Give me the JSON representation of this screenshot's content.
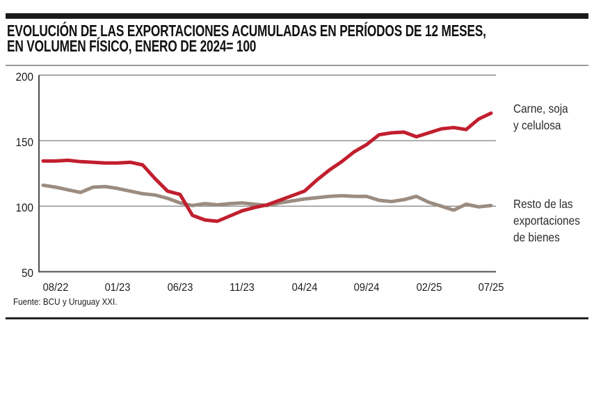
{
  "header": {
    "title_lines": [
      "EVOLUCIÓN DE LAS EXPORTACIONES ACUMULADAS EN PERÍODOS DE 12 MESES,",
      "EN VOLUMEN FÍSICO, ENERO DE 2024= 100"
    ]
  },
  "footer": {
    "source": "Fuente: BCU y Uruguay XXI."
  },
  "colors": {
    "accent_red": "#c11f2e",
    "taupe": "#9c8c80",
    "grid": "#8a8a8a",
    "axis": "#4d4d4d",
    "top_bar": "#1a1a1a",
    "text": "#1c1c1c"
  },
  "chart_data": {
    "type": "line",
    "title": "Evolución de las exportaciones acumuladas en períodos de 12 meses, en volumen físico, enero de 2024 = 100",
    "x": [
      "07/22",
      "08/22",
      "09/22",
      "10/22",
      "11/22",
      "12/22",
      "01/23",
      "02/23",
      "03/23",
      "04/23",
      "05/23",
      "06/23",
      "07/23",
      "08/23",
      "09/23",
      "10/23",
      "11/23",
      "12/23",
      "01/24",
      "02/24",
      "03/24",
      "04/24",
      "05/24",
      "06/24",
      "07/24",
      "08/24",
      "09/24",
      "10/24",
      "11/24",
      "12/24",
      "01/25",
      "02/25",
      "03/25",
      "04/25",
      "05/25",
      "06/25",
      "07/25"
    ],
    "x_tick_labels": [
      "08/22",
      "01/23",
      "06/23",
      "11/23",
      "04/24",
      "09/24",
      "02/25",
      "07/25"
    ],
    "y_ticks": [
      200,
      150,
      100,
      50
    ],
    "ylim": [
      50,
      200
    ],
    "grid": "horizontal",
    "legend_position": "right-outside",
    "series": [
      {
        "name": "Carne, soja y celulosa",
        "label_lines": [
          "Carne, soja",
          "y celulosa"
        ],
        "color": "#c11f2e",
        "values": [
          134.5,
          134.5,
          135,
          134,
          133.5,
          133,
          133,
          133.5,
          131.5,
          121,
          111.5,
          109,
          93,
          89.5,
          88.5,
          92.5,
          96.5,
          99,
          101,
          104.5,
          108,
          111.5,
          120,
          127.5,
          134,
          141.5,
          147,
          154.5,
          156,
          156.5,
          153,
          156,
          159,
          160,
          158.5,
          166.5,
          171
        ]
      },
      {
        "name": "Resto de las exportaciones de bienes",
        "label_lines": [
          "Resto de las",
          "exportaciones",
          "de bienes"
        ],
        "color": "#9c8c80",
        "values": [
          116,
          114.5,
          112.5,
          110.5,
          114.5,
          115,
          113.5,
          111.5,
          109.5,
          108.5,
          106,
          102.5,
          100.5,
          102,
          101,
          102,
          102.5,
          101.5,
          100.5,
          102.5,
          104,
          105.5,
          106.5,
          107.5,
          108,
          107.5,
          107.5,
          104.5,
          103.5,
          105,
          107.5,
          103,
          100,
          97,
          101.5,
          99.5,
          100.5
        ]
      }
    ]
  }
}
